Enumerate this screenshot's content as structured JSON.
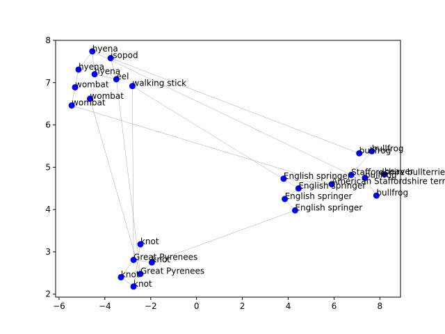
{
  "chart_data": {
    "type": "scatter",
    "title": "",
    "xlabel": "",
    "ylabel": "",
    "xlim": [
      -6.15,
      8.9
    ],
    "ylim": [
      1.93,
      8.0
    ],
    "xticks": [
      -6,
      -4,
      -2,
      0,
      2,
      4,
      6,
      8
    ],
    "yticks": [
      2,
      3,
      4,
      5,
      6,
      7,
      8
    ],
    "grid": false,
    "point_color": "#0000ff",
    "line_color": "#808080",
    "points": [
      {
        "label": "hyena",
        "x": -4.55,
        "y": 7.74
      },
      {
        "label": "isopod",
        "x": -3.75,
        "y": 7.58
      },
      {
        "label": "hyena",
        "x": -5.15,
        "y": 7.31
      },
      {
        "label": "hyena",
        "x": -4.45,
        "y": 7.2
      },
      {
        "label": "eel",
        "x": -3.5,
        "y": 7.08
      },
      {
        "label": "walking stick",
        "x": -2.8,
        "y": 6.92
      },
      {
        "label": "wombat",
        "x": -5.3,
        "y": 6.89
      },
      {
        "label": "wombat",
        "x": -4.65,
        "y": 6.62
      },
      {
        "label": "wombat",
        "x": -5.45,
        "y": 6.46
      },
      {
        "label": "bullfrog",
        "x": 7.1,
        "y": 5.33
      },
      {
        "label": "bullfrog",
        "x": 7.65,
        "y": 5.38
      },
      {
        "label": "Staffordshire bullterrier",
        "x": 6.75,
        "y": 4.82
      },
      {
        "label": "beaver",
        "x": 8.2,
        "y": 4.83
      },
      {
        "label": "bullfrog",
        "x": 7.35,
        "y": 4.75
      },
      {
        "label": "English springer",
        "x": 3.8,
        "y": 4.73
      },
      {
        "label": "American Staffordshire terrier",
        "x": 5.9,
        "y": 4.6
      },
      {
        "label": "English springer",
        "x": 4.45,
        "y": 4.5
      },
      {
        "label": "bullfrog",
        "x": 7.85,
        "y": 4.33
      },
      {
        "label": "English springer",
        "x": 3.85,
        "y": 4.25
      },
      {
        "label": "English springer",
        "x": 4.3,
        "y": 3.98
      },
      {
        "label": "knot",
        "x": -2.45,
        "y": 3.18
      },
      {
        "label": "Great Pyrenees",
        "x": -2.75,
        "y": 2.81
      },
      {
        "label": "knot",
        "x": -1.95,
        "y": 2.75
      },
      {
        "label": "Great Pyrenees",
        "x": -2.45,
        "y": 2.48
      },
      {
        "label": "knot",
        "x": -3.3,
        "y": 2.4
      },
      {
        "label": "knot",
        "x": -2.75,
        "y": 2.18
      }
    ],
    "edges": [
      [
        0,
        2
      ],
      [
        0,
        3
      ],
      [
        2,
        6
      ],
      [
        6,
        8
      ],
      [
        3,
        4
      ],
      [
        0,
        11
      ],
      [
        1,
        4
      ],
      [
        1,
        9
      ],
      [
        4,
        23
      ],
      [
        5,
        21
      ],
      [
        5,
        16
      ],
      [
        7,
        23
      ],
      [
        8,
        15
      ],
      [
        9,
        10
      ],
      [
        10,
        11
      ],
      [
        11,
        13
      ],
      [
        12,
        13
      ],
      [
        13,
        17
      ],
      [
        15,
        14
      ],
      [
        15,
        16
      ],
      [
        16,
        18
      ],
      [
        18,
        19
      ],
      [
        19,
        22
      ],
      [
        21,
        22
      ],
      [
        20,
        25
      ],
      [
        21,
        24
      ],
      [
        24,
        25
      ],
      [
        22,
        23
      ]
    ]
  }
}
